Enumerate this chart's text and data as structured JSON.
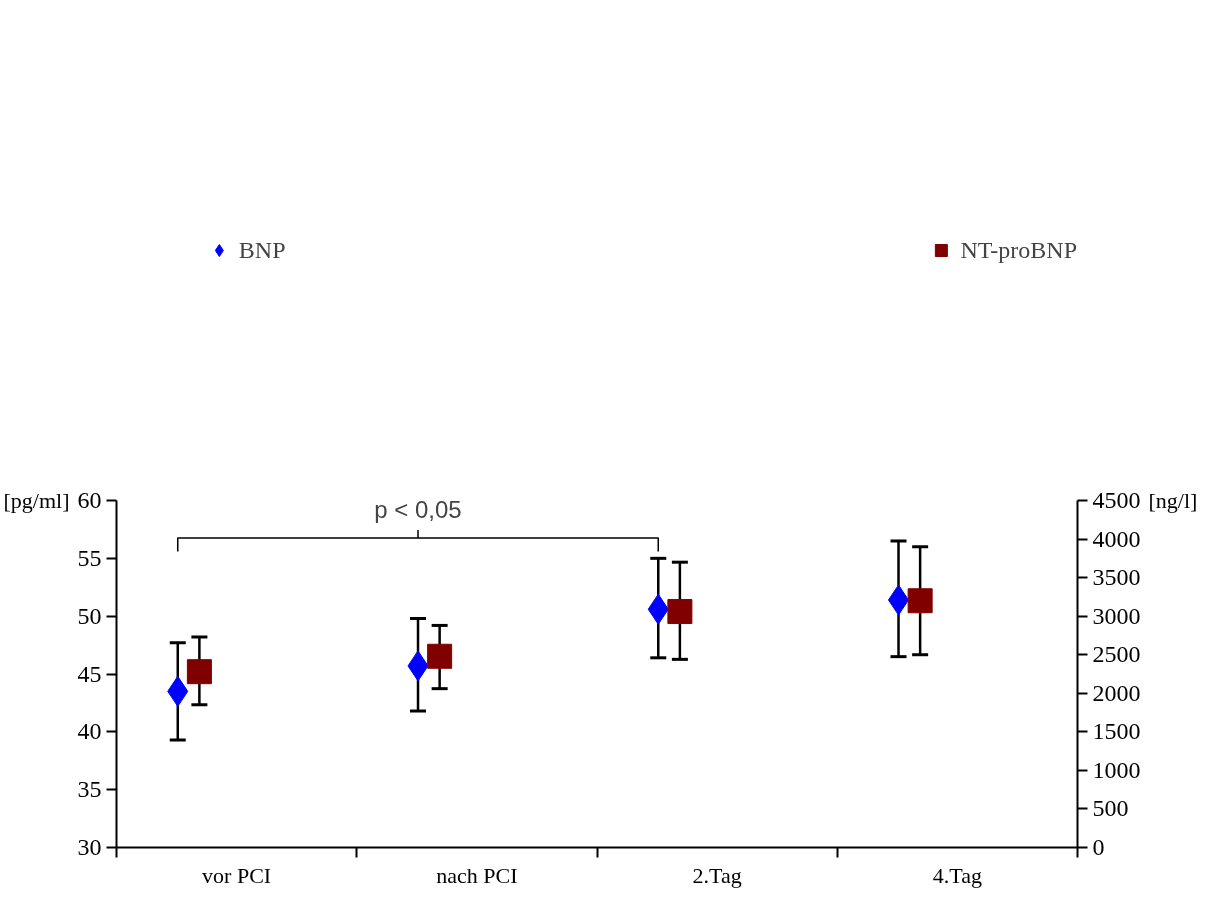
{
  "chart_data": {
    "type": "scatter",
    "categories": [
      "vor PCI",
      "nach PCI",
      "2.Tag",
      "4.Tag"
    ],
    "ylabel": "[pg/ml]",
    "y2label": "[ng/l]",
    "ylim": [
      30,
      60
    ],
    "yticks": [
      30,
      35,
      40,
      45,
      50,
      55,
      60
    ],
    "y2lim": [
      0,
      4500
    ],
    "y2ticks": [
      0,
      500,
      1000,
      1500,
      2000,
      2500,
      3000,
      3500,
      4000,
      4500
    ],
    "grid": false,
    "legend": "top",
    "annotations": [
      "p < 0,05"
    ],
    "series": [
      {
        "name": "BNP",
        "color": "#0000ff",
        "marker": "diamond",
        "values": [
          43.5,
          45.7,
          50.6,
          51.4
        ],
        "errors": [
          [
            39.3,
            47.7
          ],
          [
            41.8,
            49.8
          ],
          [
            46.4,
            55.0
          ],
          [
            46.5,
            56.5
          ]
        ]
      },
      {
        "name": "NT-proBNP",
        "color": "#800000",
        "marker": "square",
        "axis": "y2",
        "values": [
          2280,
          2480,
          3060,
          3200
        ],
        "errors": [
          [
            1850,
            2730
          ],
          [
            2060,
            2880
          ],
          [
            2440,
            3700
          ],
          [
            2500,
            3900
          ]
        ]
      }
    ]
  }
}
